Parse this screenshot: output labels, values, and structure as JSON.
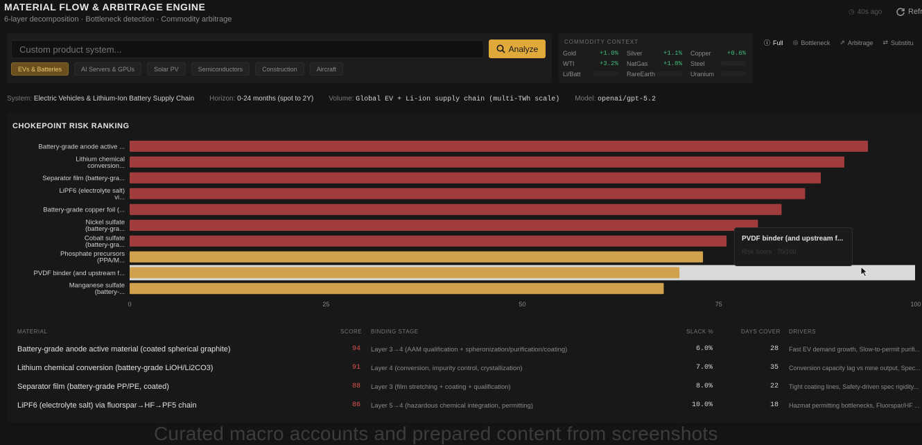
{
  "header": {
    "title": "MATERIAL FLOW & ARBITRAGE ENGINE",
    "subtitle": "6-layer decomposition · Bottleneck detection · Commodity arbitrage",
    "updated": "40s ago",
    "refresh_label": "Refr"
  },
  "search": {
    "placeholder": "Custom product system...",
    "analyze_label": "Analyze"
  },
  "presets": [
    "EVs & Batteries",
    "AI Servers & GPUs",
    "Solar PV",
    "Semiconductors",
    "Construction",
    "Aircraft"
  ],
  "commodity": {
    "title": "COMMODITY CONTEXT",
    "items": [
      {
        "name": "Gold",
        "change": "+1.0%"
      },
      {
        "name": "Silver",
        "change": "+1.1%"
      },
      {
        "name": "Copper",
        "change": "+0.6%"
      },
      {
        "name": "WTI",
        "change": "+3.2%"
      },
      {
        "name": "NatGas",
        "change": "+1.8%"
      },
      {
        "name": "Steel",
        "change": ""
      },
      {
        "name": "Li/Batt",
        "change": ""
      },
      {
        "name": "RareEarth",
        "change": ""
      },
      {
        "name": "Uranium",
        "change": ""
      }
    ],
    "positive_color": "#3fb978"
  },
  "views": [
    "Full",
    "Bottleneck",
    "Arbitrage",
    "Substitu"
  ],
  "meta": {
    "system_label": "System:",
    "system": "Electric Vehicles & Lithium-Ion Battery Supply Chain",
    "horizon_label": "Horizon:",
    "horizon": "0-24 months (spot to 2Y)",
    "volume_label": "Volume:",
    "volume": "Global EV + Li-ion supply chain (multi-TWh scale)",
    "model_label": "Model:",
    "model": "openai/gpt-5.2"
  },
  "chart_title": "CHOKEPOINT RISK RANKING",
  "chart_data": {
    "type": "bar",
    "orientation": "horizontal",
    "categories": [
      [
        "Battery-grade anode active ..."
      ],
      [
        "Lithium chemical",
        "conversion..."
      ],
      [
        "Separator film (battery-gra..."
      ],
      [
        "LiPF6 (electrolyte salt)",
        "vi..."
      ],
      [
        "Battery-grade copper foil (..."
      ],
      [
        "Nickel sulfate",
        "(battery-gra..."
      ],
      [
        "Cobalt sulfate",
        "(battery-gra..."
      ],
      [
        "Phosphate precursors",
        "(PPA/M..."
      ],
      [
        "PVDF binder (and upstream f..."
      ],
      [
        "Manganese sulfate",
        "(battery-..."
      ]
    ],
    "values": [
      94,
      91,
      88,
      86,
      83,
      80,
      76,
      73,
      70,
      68
    ],
    "colors": [
      "#a03c3c",
      "#a03c3c",
      "#a03c3c",
      "#a03c3c",
      "#a03c3c",
      "#a03c3c",
      "#a03c3c",
      "#d1a24e",
      "#d1a24e",
      "#d1a24e"
    ],
    "xlim": [
      0,
      100
    ],
    "xticks": [
      0,
      25,
      50,
      75,
      100
    ],
    "highlight_index": 8
  },
  "tooltip": {
    "title": "PVDF binder (and upstream f...",
    "subtitle": "Risk Score : 70/100"
  },
  "table": {
    "headers": {
      "material": "MATERIAL",
      "score": "SCORE",
      "stage": "BINDING STAGE",
      "slack": "SLACK %",
      "days": "DAYS COVER",
      "drivers": "DRIVERS"
    },
    "rows": [
      {
        "material": "Battery-grade anode active material (coated spherical graphite)",
        "score": "94",
        "stage": "Layer 3→4 (AAM qualification + spheronization/purification/coating)",
        "slack": "6.0%",
        "days": "28",
        "drivers": "Fast EV demand growth, Slow-to-permit purifi..."
      },
      {
        "material": "Lithium chemical conversion (battery-grade LiOH/Li2CO3)",
        "score": "91",
        "stage": "Layer 4 (conversion, impurity control, crystallization)",
        "slack": "7.0%",
        "days": "35",
        "drivers": "Conversion capacity lag vs mine output, Spec..."
      },
      {
        "material": "Separator film (battery-grade PP/PE, coated)",
        "score": "88",
        "stage": "Layer 3 (film stretching + coating + qualification)",
        "slack": "8.0%",
        "days": "22",
        "drivers": "Tight coating lines, Safety-driven spec rigidity..."
      },
      {
        "material": "LiPF6 (electrolyte salt) via fluorspar→HF→PF5 chain",
        "score": "86",
        "stage": "Layer 5→4 (hazardous chemical integration, permitting)",
        "slack": "10.0%",
        "days": "18",
        "drivers": "Hazmat permitting bottlenecks, Fluorspar/HF ..."
      }
    ]
  },
  "overlay_caption": "Curated macro accounts and prepared content from screenshots"
}
